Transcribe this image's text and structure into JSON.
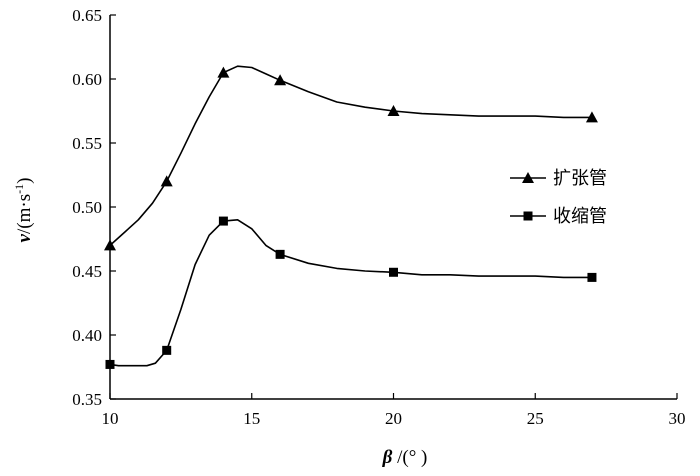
{
  "chart_data": {
    "type": "line",
    "xlabel": {
      "symbol": "β",
      "unit": " /(° )"
    },
    "ylabel": {
      "symbol": "v",
      "unit": "/(m·s",
      "sup": "-1",
      "close": ")"
    },
    "xlim": [
      10,
      30
    ],
    "ylim": [
      0.35,
      0.65
    ],
    "xticks": [
      10,
      15,
      20,
      25,
      30
    ],
    "yticks": [
      0.35,
      0.4,
      0.45,
      0.5,
      0.55,
      0.6,
      0.65
    ],
    "xtick_labels": [
      "10",
      "15",
      "20",
      "25",
      "30"
    ],
    "ytick_labels": [
      "0.35",
      "0.40",
      "0.45",
      "0.50",
      "0.55",
      "0.60",
      "0.65"
    ],
    "grid": false,
    "legend_position": "right",
    "series": [
      {
        "name": "扩张管",
        "marker": "triangle",
        "x": [
          10,
          12,
          14,
          16,
          20,
          27
        ],
        "y": [
          0.47,
          0.52,
          0.605,
          0.599,
          0.575,
          0.57
        ],
        "curve": [
          [
            10,
            0.47
          ],
          [
            10.5,
            0.48
          ],
          [
            11,
            0.49
          ],
          [
            11.5,
            0.503
          ],
          [
            12,
            0.52
          ],
          [
            12.5,
            0.542
          ],
          [
            13,
            0.565
          ],
          [
            13.5,
            0.586
          ],
          [
            14,
            0.605
          ],
          [
            14.5,
            0.61
          ],
          [
            15,
            0.609
          ],
          [
            15.5,
            0.604
          ],
          [
            16,
            0.599
          ],
          [
            17,
            0.59
          ],
          [
            18,
            0.582
          ],
          [
            19,
            0.578
          ],
          [
            20,
            0.575
          ],
          [
            21,
            0.573
          ],
          [
            22,
            0.572
          ],
          [
            23,
            0.571
          ],
          [
            24,
            0.571
          ],
          [
            25,
            0.571
          ],
          [
            26,
            0.57
          ],
          [
            27,
            0.57
          ]
        ]
      },
      {
        "name": "收缩管",
        "marker": "square",
        "x": [
          10,
          12,
          14,
          16,
          20,
          27
        ],
        "y": [
          0.377,
          0.388,
          0.489,
          0.463,
          0.449,
          0.445
        ],
        "curve": [
          [
            10,
            0.377
          ],
          [
            10.3,
            0.376
          ],
          [
            10.7,
            0.376
          ],
          [
            11,
            0.376
          ],
          [
            11.3,
            0.376
          ],
          [
            11.6,
            0.378
          ],
          [
            12,
            0.388
          ],
          [
            12.5,
            0.42
          ],
          [
            13,
            0.455
          ],
          [
            13.5,
            0.478
          ],
          [
            14,
            0.489
          ],
          [
            14.5,
            0.49
          ],
          [
            15,
            0.483
          ],
          [
            15.5,
            0.47
          ],
          [
            16,
            0.463
          ],
          [
            17,
            0.456
          ],
          [
            18,
            0.452
          ],
          [
            19,
            0.45
          ],
          [
            20,
            0.449
          ],
          [
            21,
            0.447
          ],
          [
            22,
            0.447
          ],
          [
            23,
            0.446
          ],
          [
            24,
            0.446
          ],
          [
            25,
            0.446
          ],
          [
            26,
            0.445
          ],
          [
            27,
            0.445
          ]
        ]
      }
    ]
  }
}
